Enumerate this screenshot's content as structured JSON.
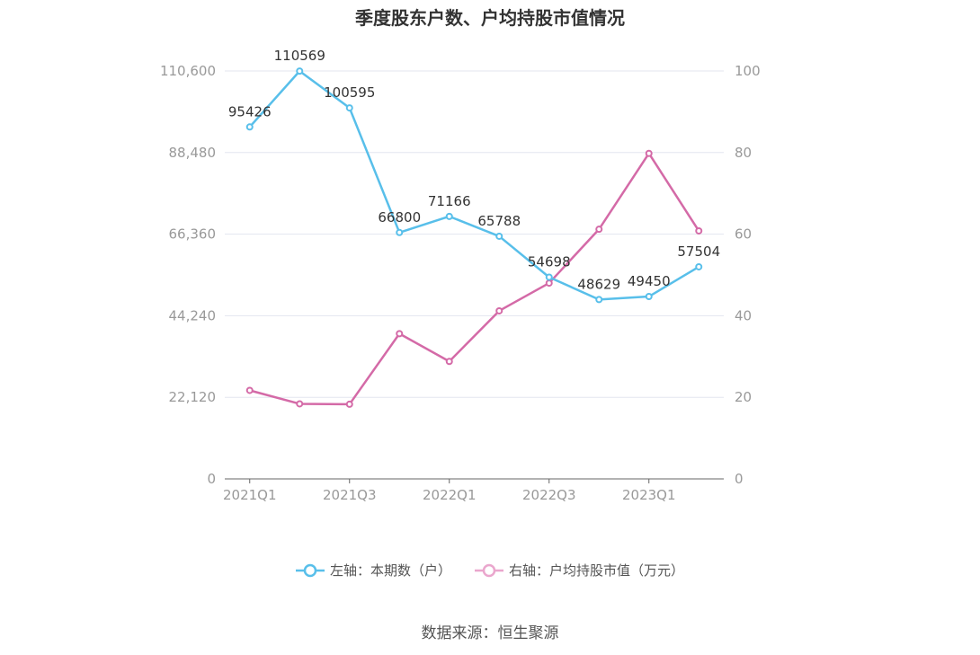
{
  "title": "季度股东户数、户均持股市值情况",
  "source": "数据来源：恒生聚源",
  "legend": {
    "left": "左轴：本期数（户）",
    "right": "右轴：户均持股市值（万元）"
  },
  "colors": {
    "left_series": "#58bfea",
    "right_series": "#d46aa7",
    "grid": "#e3e6ef",
    "axis_text": "#999999"
  },
  "chart_data": {
    "type": "line",
    "x": [
      "2021Q1",
      "2021Q2",
      "2021Q3",
      "2021Q4",
      "2022Q1",
      "2022Q2",
      "2022Q3",
      "2022Q4",
      "2023Q1",
      "2023Q2"
    ],
    "x_tick_labels": [
      "2021Q1",
      "2021Q3",
      "2022Q1",
      "2022Q3",
      "2023Q1"
    ],
    "y_left_ticks": [
      "0",
      "22,120",
      "44,240",
      "66,360",
      "88,480",
      "110,600"
    ],
    "y_right_ticks": [
      "0",
      "20",
      "40",
      "60",
      "80",
      "100"
    ],
    "y_left_lim": [
      0,
      110600
    ],
    "y_right_lim": [
      0,
      100
    ],
    "grid": true,
    "legend_position": "bottom",
    "series": [
      {
        "name": "左轴：本期数（户）",
        "axis": "left",
        "values": [
          95426,
          110569,
          100595,
          66800,
          71166,
          65788,
          54698,
          48629,
          49450,
          57504
        ],
        "labels": [
          "95426",
          "110569",
          "100595",
          "66800",
          "71166",
          "65788",
          "54698",
          "48629",
          "49450",
          "57504"
        ]
      },
      {
        "name": "右轴：户均持股市值（万元）",
        "axis": "right",
        "values": [
          21.7,
          18.4,
          18.3,
          35.6,
          28.8,
          41.2,
          48.0,
          61.2,
          79.8,
          60.8
        ]
      }
    ]
  }
}
